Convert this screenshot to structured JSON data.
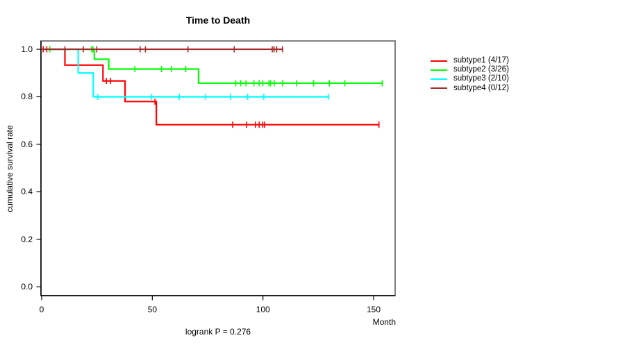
{
  "chart_data": {
    "type": "line",
    "variant": "kaplan-meier-step-curves",
    "title": "Time to Death",
    "xlabel": "Month",
    "ylabel": "cumulative survival rate",
    "annotation": "logrank P = 0.276",
    "xlim": [
      0,
      160
    ],
    "ylim": [
      0,
      1.04
    ],
    "x_ticks": [
      0,
      50,
      100,
      150
    ],
    "y_ticks": [
      "0.0",
      "0.2",
      "0.4",
      "0.6",
      "0.8",
      "1.0"
    ],
    "grid": false,
    "legend_position": "right-outside",
    "box_color": "#808080",
    "axis_color": "#000000",
    "series": [
      {
        "name": "subtype1 (4/17)",
        "color": "#ff0000",
        "events": 4,
        "n": 17,
        "steps": [
          [
            0,
            1.0
          ],
          [
            10.5,
            0.9333
          ],
          [
            27.7,
            0.8667
          ],
          [
            37.7,
            0.78
          ],
          [
            51.8,
            0.6825
          ]
        ],
        "end_month": 152.7,
        "censor_marks": [
          [
            0.7,
            1.0
          ],
          [
            2.3,
            1.0
          ],
          [
            29.2,
            0.8667
          ],
          [
            31.1,
            0.8667
          ],
          [
            51.2,
            0.78
          ],
          [
            86.3,
            0.6825
          ],
          [
            92.6,
            0.6825
          ],
          [
            96.6,
            0.6825
          ],
          [
            98.3,
            0.6825
          ],
          [
            99.9,
            0.6825
          ],
          [
            100.7,
            0.6825
          ],
          [
            152.4,
            0.6825
          ]
        ]
      },
      {
        "name": "subtype2 (3/26)",
        "color": "#00ff00",
        "events": 3,
        "n": 26,
        "steps": [
          [
            0,
            1.0
          ],
          [
            23.8,
            0.9583
          ],
          [
            30.3,
            0.9167
          ],
          [
            70.9,
            0.857
          ]
        ],
        "end_month": 154.2,
        "censor_marks": [
          [
            3.7,
            1.0
          ],
          [
            22.6,
            1.0
          ],
          [
            23.2,
            1.0
          ],
          [
            42.1,
            0.9167
          ],
          [
            54.2,
            0.9167
          ],
          [
            58.6,
            0.9167
          ],
          [
            65.1,
            0.9167
          ],
          [
            87.7,
            0.857
          ],
          [
            90.0,
            0.857
          ],
          [
            92.3,
            0.857
          ],
          [
            95.9,
            0.857
          ],
          [
            98.3,
            0.857
          ],
          [
            99.9,
            0.857
          ],
          [
            102.7,
            0.857
          ],
          [
            103.4,
            0.857
          ],
          [
            105.1,
            0.857
          ],
          [
            108.8,
            0.857
          ],
          [
            115.1,
            0.857
          ],
          [
            122.9,
            0.857
          ],
          [
            130.0,
            0.857
          ],
          [
            137.0,
            0.857
          ],
          [
            153.9,
            0.857
          ]
        ]
      },
      {
        "name": "subtype3 (2/10)",
        "color": "#00ffff",
        "events": 2,
        "n": 10,
        "steps": [
          [
            0,
            1.0
          ],
          [
            16.5,
            0.9
          ],
          [
            23.3,
            0.8
          ]
        ],
        "end_month": 130.0,
        "censor_marks": [
          [
            25.4,
            0.8
          ],
          [
            49.7,
            0.8
          ],
          [
            62.2,
            0.8
          ],
          [
            74.1,
            0.8
          ],
          [
            85.3,
            0.8
          ],
          [
            93.1,
            0.8
          ],
          [
            100.4,
            0.8
          ],
          [
            129.5,
            0.8
          ]
        ]
      },
      {
        "name": "subtype4 (0/12)",
        "color": "#a52a2a",
        "events": 0,
        "n": 12,
        "steps": [
          [
            0,
            1.0
          ]
        ],
        "end_month": 109.2,
        "censor_marks": [
          [
            10.5,
            1.0
          ],
          [
            18.8,
            1.0
          ],
          [
            24.9,
            1.0
          ],
          [
            44.5,
            1.0
          ],
          [
            46.9,
            1.0
          ],
          [
            66.1,
            1.0
          ],
          [
            87.0,
            1.0
          ],
          [
            104.2,
            1.0
          ],
          [
            105.0,
            1.0
          ],
          [
            106.2,
            1.0
          ],
          [
            108.8,
            1.0
          ]
        ]
      }
    ]
  }
}
